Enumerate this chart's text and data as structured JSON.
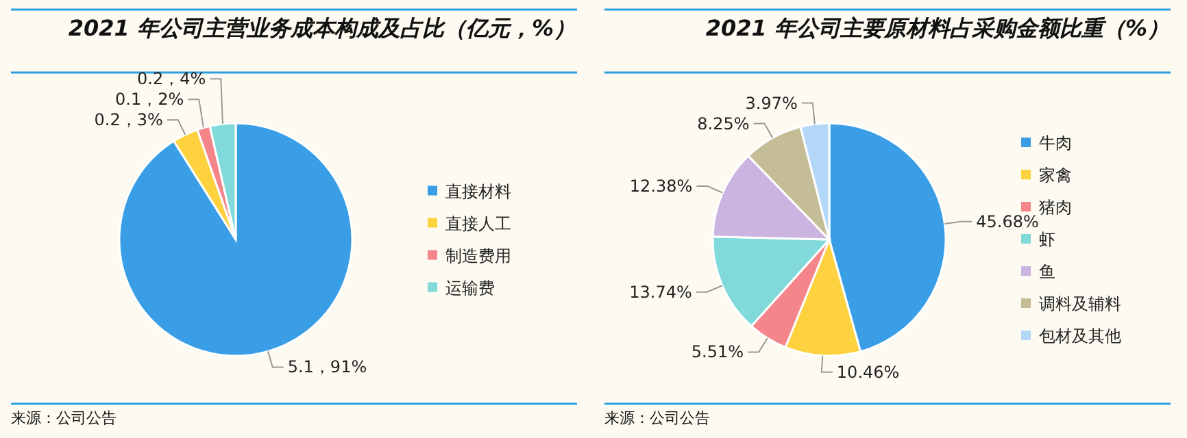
{
  "chart_data": [
    {
      "type": "pie",
      "title": "2021 年公司主营业务成本构成及占比（亿元，%）",
      "categories": [
        "直接材料",
        "直接人工",
        "制造费用",
        "运输费"
      ],
      "values": [
        5.1,
        0.2,
        0.1,
        0.2
      ],
      "value_labels": [
        "5.1，91%",
        "0.2，3%",
        "0.1，2%",
        "0.2，4%"
      ],
      "colors": [
        "#3a9ee6",
        "#fdd23e",
        "#f4868b",
        "#82d9d9"
      ],
      "legend": "right",
      "annotations": [
        "来源：公司公告"
      ]
    },
    {
      "type": "pie",
      "title": "2021 年公司主要原材料占采购金额比重（%）",
      "categories": [
        "牛肉",
        "家禽",
        "猪肉",
        "虾",
        "鱼",
        "调料及辅料",
        "包材及其他"
      ],
      "values": [
        45.68,
        10.46,
        5.51,
        13.74,
        12.38,
        8.25,
        3.97
      ],
      "value_labels": [
        "45.68%",
        "10.46%",
        "5.51%",
        "13.74%",
        "12.38%",
        "8.25%",
        "3.97%"
      ],
      "colors": [
        "#3a9ee6",
        "#fdd23e",
        "#f4868b",
        "#82d9d9",
        "#cbb4df",
        "#c4bd96",
        "#b3d8f7"
      ],
      "legend": "right",
      "annotations": [
        "来源：公司公告"
      ]
    }
  ]
}
